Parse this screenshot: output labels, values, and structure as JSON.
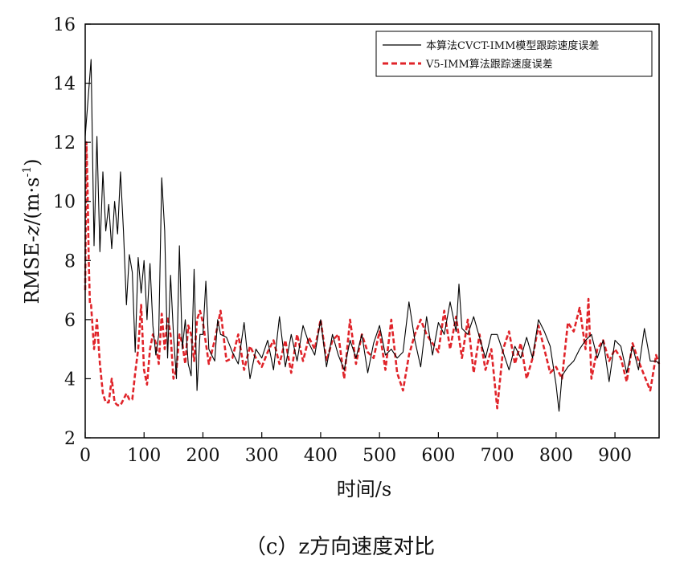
{
  "caption": "（c）z方向速度对比",
  "chart_data": {
    "type": "line",
    "xlabel": "时间/s",
    "ylabel_prefix": "RMSE-",
    "ylabel_italic": "z",
    "ylabel_suffix": "/(m·s",
    "ylabel_sup": "-1",
    "ylabel_close": ")",
    "xlim": [
      0,
      975
    ],
    "ylim": [
      2,
      16
    ],
    "xticks": [
      0,
      100,
      200,
      300,
      400,
      500,
      600,
      700,
      800,
      900
    ],
    "yticks": [
      2,
      4,
      6,
      8,
      10,
      12,
      14,
      16
    ],
    "grid": false,
    "legend_position": "top-right",
    "series": [
      {
        "name": "本算法CVCT-IMM模型跟踪速度误差",
        "color": "#000000",
        "style": "solid",
        "x": [
          0,
          5,
          10,
          15,
          20,
          25,
          30,
          35,
          40,
          45,
          50,
          55,
          60,
          65,
          70,
          75,
          80,
          85,
          90,
          95,
          100,
          105,
          110,
          115,
          120,
          125,
          130,
          135,
          140,
          145,
          150,
          155,
          160,
          165,
          170,
          175,
          180,
          185,
          190,
          195,
          200,
          205,
          210,
          215,
          220,
          225,
          230,
          240,
          250,
          260,
          270,
          280,
          290,
          300,
          310,
          320,
          330,
          340,
          350,
          360,
          370,
          380,
          390,
          400,
          410,
          420,
          430,
          440,
          450,
          460,
          470,
          480,
          490,
          500,
          510,
          520,
          530,
          540,
          550,
          560,
          570,
          580,
          590,
          600,
          610,
          620,
          630,
          635,
          640,
          650,
          660,
          670,
          680,
          690,
          700,
          710,
          720,
          730,
          740,
          750,
          760,
          770,
          780,
          790,
          800,
          805,
          810,
          820,
          830,
          840,
          850,
          860,
          870,
          880,
          890,
          900,
          910,
          920,
          930,
          940,
          950,
          960,
          970,
          975
        ],
        "values": [
          12.2,
          13.5,
          14.8,
          8.5,
          12.2,
          8.3,
          11.0,
          9.0,
          9.9,
          8.4,
          10.0,
          8.9,
          11.0,
          9.0,
          6.5,
          8.2,
          7.6,
          4.9,
          8.1,
          6.9,
          8.0,
          6.0,
          7.9,
          5.8,
          4.8,
          5.5,
          10.8,
          9.0,
          4.7,
          7.5,
          5.5,
          4.0,
          8.5,
          5.0,
          6.0,
          4.5,
          4.1,
          7.7,
          3.6,
          5.5,
          5.5,
          7.3,
          5.0,
          4.8,
          4.6,
          6.0,
          5.5,
          5.4,
          4.9,
          4.5,
          5.9,
          4.0,
          5.0,
          4.7,
          5.3,
          4.3,
          6.1,
          4.4,
          5.5,
          4.6,
          5.8,
          5.2,
          4.8,
          6.0,
          4.4,
          5.5,
          4.8,
          4.3,
          5.3,
          4.7,
          5.5,
          4.2,
          5.2,
          5.8,
          4.8,
          5.0,
          4.7,
          4.9,
          6.6,
          5.3,
          4.4,
          6.1,
          4.8,
          5.9,
          5.5,
          6.6,
          5.6,
          7.2,
          5.7,
          5.5,
          6.1,
          5.4,
          4.7,
          5.5,
          5.5,
          4.9,
          4.3,
          5.1,
          4.7,
          5.4,
          4.7,
          6.0,
          5.6,
          5.1,
          3.8,
          2.9,
          4.1,
          4.4,
          4.6,
          5.0,
          5.3,
          5.5,
          4.7,
          5.3,
          3.9,
          5.3,
          5.1,
          4.2,
          5.1,
          4.3,
          5.7,
          4.6,
          4.6,
          4.5
        ]
      },
      {
        "name": "V5-IMM算法跟踪速度误差",
        "color": "#e0242a",
        "style": "dashed",
        "x": [
          0,
          2,
          4,
          6,
          8,
          10,
          15,
          20,
          25,
          30,
          35,
          40,
          45,
          50,
          55,
          60,
          65,
          70,
          75,
          80,
          85,
          90,
          95,
          100,
          105,
          110,
          115,
          120,
          125,
          130,
          135,
          140,
          145,
          150,
          155,
          160,
          165,
          170,
          175,
          180,
          185,
          190,
          195,
          200,
          210,
          220,
          230,
          240,
          250,
          260,
          270,
          280,
          290,
          300,
          310,
          320,
          330,
          340,
          350,
          360,
          370,
          380,
          390,
          400,
          410,
          420,
          430,
          440,
          450,
          460,
          470,
          480,
          490,
          500,
          510,
          520,
          530,
          540,
          550,
          560,
          570,
          580,
          590,
          600,
          610,
          620,
          630,
          640,
          650,
          660,
          670,
          680,
          690,
          700,
          710,
          720,
          730,
          740,
          750,
          760,
          770,
          780,
          790,
          800,
          810,
          820,
          830,
          840,
          850,
          855,
          860,
          870,
          880,
          890,
          900,
          910,
          920,
          930,
          940,
          950,
          960,
          970,
          975
        ],
        "values": [
          7.0,
          12.0,
          10.5,
          8.0,
          6.5,
          6.5,
          5.0,
          6.0,
          4.5,
          3.5,
          3.2,
          3.2,
          4.0,
          3.2,
          3.1,
          3.1,
          3.3,
          3.5,
          3.3,
          3.3,
          4.2,
          5.0,
          6.5,
          4.3,
          3.8,
          5.0,
          5.5,
          5.2,
          4.5,
          6.2,
          5.0,
          6.1,
          5.5,
          4.0,
          4.3,
          5.5,
          5.2,
          4.5,
          5.8,
          5.5,
          4.6,
          6.0,
          6.3,
          5.9,
          4.5,
          5.3,
          6.3,
          4.6,
          4.7,
          5.5,
          4.3,
          5.1,
          4.7,
          4.4,
          4.9,
          5.3,
          4.5,
          5.3,
          4.2,
          5.5,
          4.6,
          5.4,
          5.0,
          6.0,
          4.6,
          5.3,
          5.5,
          4.0,
          6.0,
          4.5,
          5.5,
          4.9,
          4.7,
          5.6,
          4.3,
          6.0,
          4.2,
          3.6,
          4.8,
          5.5,
          6.0,
          5.5,
          5.2,
          4.9,
          6.3,
          5.0,
          6.1,
          4.7,
          6.0,
          4.2,
          5.5,
          4.3,
          5.0,
          3.0,
          5.0,
          5.6,
          4.5,
          5.2,
          4.0,
          4.7,
          5.8,
          5.0,
          4.2,
          4.4,
          4.0,
          5.9,
          5.6,
          6.4,
          5.0,
          6.7,
          4.0,
          5.0,
          5.3,
          4.6,
          5.0,
          4.7,
          3.9,
          5.2,
          4.6,
          4.1,
          3.6,
          4.8,
          4.5
        ]
      }
    ]
  }
}
